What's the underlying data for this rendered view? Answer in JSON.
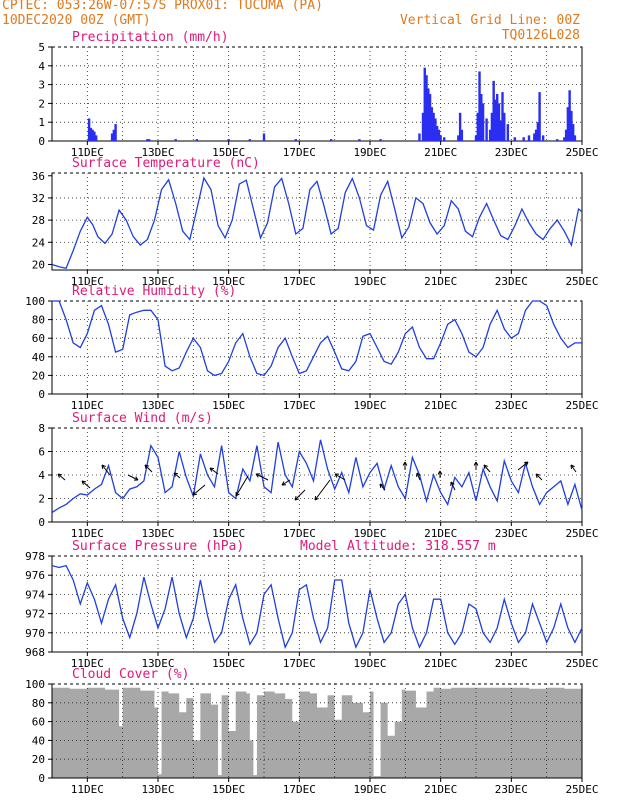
{
  "header": {
    "station": "CPTEC:  053:26W-07:57S  PROX01: TUCUMA (PA)",
    "date": "10DEC2020 00Z (GMT)",
    "grid_note": "Vertical Grid Line: 00Z",
    "code": "TQ0126L028"
  },
  "colors": {
    "header": "#e07a1f",
    "title": "#e0197a",
    "line": "#1f3fe0",
    "bar": "#2a2ef0",
    "cloud": "#a8a8a8"
  },
  "x_axis": {
    "ticks": [
      {
        "day": 11,
        "label": "11DEC"
      },
      {
        "day": 13,
        "label": "13DEC"
      },
      {
        "day": 15,
        "label": "15DEC"
      },
      {
        "day": 17,
        "label": "17DEC"
      },
      {
        "day": 19,
        "label": "19DEC"
      },
      {
        "day": 21,
        "label": "21DEC"
      },
      {
        "day": 23,
        "label": "23DEC"
      },
      {
        "day": 25,
        "label": "25DEC"
      }
    ],
    "range": [
      10.0,
      25.0
    ]
  },
  "chart_data": [
    {
      "id": "precip",
      "type": "bar",
      "title": "Precipitation (mm/h)",
      "ylim": [
        0,
        5
      ],
      "yticks": [
        0,
        1,
        2,
        3,
        4,
        5
      ],
      "x": [
        11.05,
        11.1,
        11.15,
        11.2,
        11.25,
        11.7,
        11.75,
        11.8,
        12.7,
        12.75,
        13.5,
        14.1,
        15.0,
        15.6,
        16.0,
        16.9,
        17.9,
        18.7,
        19.3,
        20.4,
        20.5,
        20.55,
        20.6,
        20.65,
        20.7,
        20.75,
        20.8,
        20.85,
        20.9,
        20.95,
        21.0,
        21.1,
        21.5,
        21.55,
        21.6,
        22.0,
        22.05,
        22.1,
        22.15,
        22.2,
        22.3,
        22.4,
        22.45,
        22.5,
        22.55,
        22.6,
        22.65,
        22.7,
        22.75,
        22.8,
        22.9,
        23.1,
        23.35,
        23.5,
        23.65,
        23.7,
        23.75,
        23.8,
        23.9,
        24.3,
        24.5,
        24.55,
        24.6,
        24.65,
        24.7,
        24.75,
        24.8
      ],
      "values": [
        1.2,
        0.7,
        0.6,
        0.5,
        0.3,
        0.4,
        0.6,
        0.9,
        0.1,
        0.1,
        0.1,
        0.1,
        0.1,
        0.1,
        0.4,
        0.1,
        0.1,
        0.1,
        0.1,
        0.4,
        1.5,
        3.9,
        3.5,
        2.8,
        2.5,
        1.8,
        1.5,
        1.2,
        0.8,
        0.6,
        0.3,
        0.2,
        0.3,
        1.5,
        0.6,
        0.3,
        1.5,
        3.7,
        2.5,
        2.0,
        1.2,
        0.6,
        1.5,
        3.2,
        2.2,
        2.5,
        2.0,
        1.1,
        2.6,
        1.5,
        0.9,
        0.2,
        0.2,
        0.3,
        0.4,
        0.6,
        1.0,
        2.6,
        0.3,
        0.1,
        0.2,
        0.6,
        1.8,
        2.7,
        1.6,
        0.9,
        0.3
      ]
    },
    {
      "id": "temp",
      "type": "line",
      "title": "Surface Temperature (nC)",
      "ylim": [
        19,
        36.5
      ],
      "yticks": [
        20,
        24,
        28,
        32,
        36
      ],
      "x": [
        10.0,
        10.2,
        10.4,
        10.6,
        10.8,
        11.0,
        11.15,
        11.3,
        11.5,
        11.7,
        11.9,
        12.1,
        12.3,
        12.5,
        12.7,
        12.9,
        13.1,
        13.3,
        13.5,
        13.7,
        13.9,
        14.1,
        14.3,
        14.5,
        14.7,
        14.9,
        15.1,
        15.3,
        15.5,
        15.7,
        15.9,
        16.1,
        16.3,
        16.5,
        16.7,
        16.9,
        17.1,
        17.3,
        17.5,
        17.7,
        17.9,
        18.1,
        18.3,
        18.5,
        18.7,
        18.9,
        19.1,
        19.3,
        19.5,
        19.7,
        19.9,
        20.1,
        20.3,
        20.5,
        20.7,
        20.9,
        21.1,
        21.3,
        21.5,
        21.7,
        21.9,
        22.1,
        22.3,
        22.5,
        22.7,
        22.9,
        23.1,
        23.3,
        23.5,
        23.7,
        23.9,
        24.1,
        24.3,
        24.5,
        24.7,
        24.9,
        25.0
      ],
      "values": [
        20.0,
        19.6,
        19.3,
        22.5,
        26.0,
        28.5,
        27.2,
        25.0,
        23.8,
        25.5,
        29.8,
        28.0,
        25.0,
        23.5,
        24.5,
        28.0,
        33.5,
        35.3,
        31.0,
        26.0,
        24.5,
        30.0,
        35.6,
        33.5,
        27.0,
        24.8,
        28.0,
        34.5,
        35.2,
        30.0,
        24.8,
        27.5,
        34.0,
        35.5,
        31.0,
        25.5,
        26.5,
        33.5,
        35.0,
        30.5,
        25.5,
        26.5,
        33.0,
        35.5,
        32.0,
        27.0,
        26.2,
        32.5,
        35.0,
        30.0,
        24.8,
        26.8,
        32.0,
        31.0,
        27.5,
        25.5,
        27.0,
        31.5,
        30.0,
        26.0,
        25.0,
        28.5,
        31.0,
        28.0,
        25.2,
        24.5,
        27.0,
        30.0,
        27.5,
        25.5,
        24.5,
        26.5,
        28.0,
        26.0,
        23.5,
        30.0,
        29.5
      ]
    },
    {
      "id": "rh",
      "type": "line",
      "title": "Relative Humidity (%)",
      "ylim": [
        0,
        100
      ],
      "yticks": [
        0,
        20,
        40,
        60,
        80,
        100
      ],
      "x": [
        10.0,
        10.2,
        10.4,
        10.6,
        10.8,
        11.0,
        11.2,
        11.4,
        11.6,
        11.8,
        12.0,
        12.2,
        12.4,
        12.6,
        12.8,
        13.0,
        13.2,
        13.4,
        13.6,
        13.8,
        14.0,
        14.2,
        14.4,
        14.6,
        14.8,
        15.0,
        15.2,
        15.4,
        15.6,
        15.8,
        16.0,
        16.2,
        16.4,
        16.6,
        16.8,
        17.0,
        17.2,
        17.4,
        17.6,
        17.8,
        18.0,
        18.2,
        18.4,
        18.6,
        18.8,
        19.0,
        19.2,
        19.4,
        19.6,
        19.8,
        20.0,
        20.2,
        20.4,
        20.6,
        20.8,
        21.0,
        21.2,
        21.4,
        21.6,
        21.8,
        22.0,
        22.2,
        22.4,
        22.6,
        22.8,
        23.0,
        23.2,
        23.4,
        23.6,
        23.8,
        24.0,
        24.2,
        24.4,
        24.6,
        24.8,
        25.0
      ],
      "values": [
        100,
        100,
        80,
        55,
        50,
        65,
        90,
        95,
        75,
        45,
        48,
        85,
        88,
        90,
        90,
        80,
        30,
        25,
        28,
        45,
        60,
        50,
        25,
        20,
        22,
        35,
        55,
        65,
        40,
        22,
        20,
        30,
        50,
        60,
        40,
        22,
        25,
        40,
        55,
        62,
        45,
        27,
        25,
        35,
        62,
        65,
        50,
        35,
        32,
        45,
        65,
        72,
        50,
        38,
        38,
        55,
        75,
        80,
        65,
        45,
        40,
        50,
        75,
        90,
        70,
        60,
        65,
        90,
        100,
        100,
        95,
        75,
        60,
        50,
        55,
        55
      ]
    },
    {
      "id": "wind",
      "type": "line",
      "title": "Surface Wind (m/s)",
      "ylim": [
        0,
        8
      ],
      "yticks": [
        0,
        2,
        4,
        6,
        8
      ],
      "x": [
        10.0,
        10.2,
        10.4,
        10.6,
        10.8,
        11.0,
        11.2,
        11.4,
        11.6,
        11.8,
        12.0,
        12.2,
        12.4,
        12.6,
        12.8,
        13.0,
        13.2,
        13.4,
        13.6,
        13.8,
        14.0,
        14.2,
        14.4,
        14.6,
        14.8,
        15.0,
        15.2,
        15.4,
        15.6,
        15.8,
        16.0,
        16.2,
        16.4,
        16.6,
        16.8,
        17.0,
        17.2,
        17.4,
        17.6,
        17.8,
        18.0,
        18.2,
        18.4,
        18.6,
        18.8,
        19.0,
        19.2,
        19.4,
        19.6,
        19.8,
        20.0,
        20.2,
        20.4,
        20.6,
        20.8,
        21.0,
        21.2,
        21.4,
        21.6,
        21.8,
        22.0,
        22.2,
        22.4,
        22.6,
        22.8,
        23.0,
        23.2,
        23.4,
        23.6,
        23.8,
        24.0,
        24.2,
        24.4,
        24.6,
        24.8,
        25.0
      ],
      "values": [
        0.8,
        1.2,
        1.5,
        2.0,
        2.4,
        2.3,
        2.8,
        3.2,
        4.8,
        2.5,
        2.0,
        2.8,
        3.0,
        3.5,
        6.5,
        5.5,
        2.5,
        3.0,
        6.0,
        3.8,
        2.2,
        5.8,
        4.0,
        3.0,
        6.5,
        2.5,
        2.0,
        4.5,
        3.5,
        6.5,
        3.0,
        2.5,
        6.8,
        4.0,
        3.0,
        6.0,
        5.0,
        3.5,
        7.0,
        4.5,
        2.8,
        4.2,
        2.5,
        5.5,
        3.0,
        4.2,
        5.0,
        2.8,
        4.8,
        3.0,
        2.0,
        5.5,
        4.0,
        1.8,
        4.0,
        2.5,
        1.5,
        3.8,
        3.0,
        4.2,
        1.8,
        4.5,
        3.0,
        1.8,
        5.2,
        3.5,
        2.5,
        5.0,
        3.0,
        1.5,
        2.5,
        3.0,
        3.5,
        1.5,
        3.2,
        1.0
      ]
    },
    {
      "id": "pres",
      "type": "line",
      "title": "Surface Pressure (hPa)",
      "subtitle": "Model Altitude: 318.557 m",
      "ylim": [
        968,
        978
      ],
      "yticks": [
        968,
        970,
        972,
        974,
        976,
        978
      ],
      "x": [
        10.0,
        10.2,
        10.4,
        10.6,
        10.8,
        11.0,
        11.2,
        11.4,
        11.6,
        11.8,
        12.0,
        12.2,
        12.4,
        12.6,
        12.8,
        13.0,
        13.2,
        13.4,
        13.6,
        13.8,
        14.0,
        14.2,
        14.4,
        14.6,
        14.8,
        15.0,
        15.2,
        15.4,
        15.6,
        15.8,
        16.0,
        16.2,
        16.4,
        16.6,
        16.8,
        17.0,
        17.2,
        17.4,
        17.6,
        17.8,
        18.0,
        18.2,
        18.4,
        18.6,
        18.8,
        19.0,
        19.2,
        19.4,
        19.6,
        19.8,
        20.0,
        20.2,
        20.4,
        20.6,
        20.8,
        21.0,
        21.2,
        21.4,
        21.6,
        21.8,
        22.0,
        22.2,
        22.4,
        22.6,
        22.8,
        23.0,
        23.2,
        23.4,
        23.6,
        23.8,
        24.0,
        24.2,
        24.4,
        24.6,
        24.8,
        25.0
      ],
      "values": [
        977.0,
        976.8,
        977.0,
        975.5,
        973.0,
        975.2,
        973.5,
        971.0,
        973.5,
        975.0,
        971.5,
        969.5,
        972.0,
        975.8,
        973.0,
        970.5,
        972.5,
        975.8,
        972.0,
        969.5,
        971.5,
        975.5,
        971.8,
        969.0,
        970.0,
        973.5,
        975.0,
        971.5,
        968.8,
        970.0,
        974.0,
        975.0,
        971.5,
        968.5,
        970.0,
        974.5,
        975.0,
        971.5,
        969.0,
        970.5,
        975.5,
        975.5,
        971.0,
        968.5,
        970.0,
        974.5,
        971.5,
        969.0,
        970.0,
        973.0,
        974.0,
        970.5,
        968.5,
        970.0,
        973.5,
        973.5,
        970.0,
        968.8,
        970.0,
        973.0,
        972.5,
        970.0,
        969.0,
        970.5,
        973.5,
        971.0,
        969.0,
        970.0,
        973.0,
        971.0,
        969.0,
        970.5,
        973.0,
        970.5,
        969.0,
        970.5
      ]
    },
    {
      "id": "cloud",
      "type": "area",
      "title": "Cloud Cover (%)",
      "ylim": [
        0,
        100
      ],
      "yticks": [
        0,
        20,
        40,
        60,
        80,
        100
      ],
      "x": [
        10.0,
        10.5,
        11.0,
        11.5,
        11.9,
        12.0,
        12.5,
        12.9,
        13.0,
        13.1,
        13.3,
        13.6,
        13.8,
        14.0,
        14.2,
        14.5,
        14.7,
        14.8,
        15.0,
        15.2,
        15.5,
        15.6,
        15.7,
        15.8,
        16.0,
        16.3,
        16.6,
        16.8,
        17.0,
        17.3,
        17.5,
        17.8,
        18.0,
        18.2,
        18.5,
        18.8,
        19.0,
        19.1,
        19.3,
        19.5,
        19.7,
        19.9,
        20.0,
        20.3,
        20.6,
        20.8,
        21.0,
        21.3,
        21.6,
        22.0,
        22.5,
        23.0,
        23.5,
        24.0,
        24.5,
        25.0
      ],
      "values": [
        96,
        95,
        96,
        94,
        55,
        96,
        93,
        75,
        4,
        92,
        90,
        70,
        85,
        40,
        90,
        78,
        3,
        88,
        50,
        92,
        90,
        40,
        3,
        88,
        92,
        90,
        84,
        60,
        92,
        90,
        75,
        88,
        62,
        88,
        80,
        70,
        92,
        2,
        80,
        45,
        60,
        94,
        93,
        75,
        92,
        96,
        95,
        96,
        96,
        96,
        96,
        96,
        95,
        96,
        95,
        95
      ]
    }
  ]
}
